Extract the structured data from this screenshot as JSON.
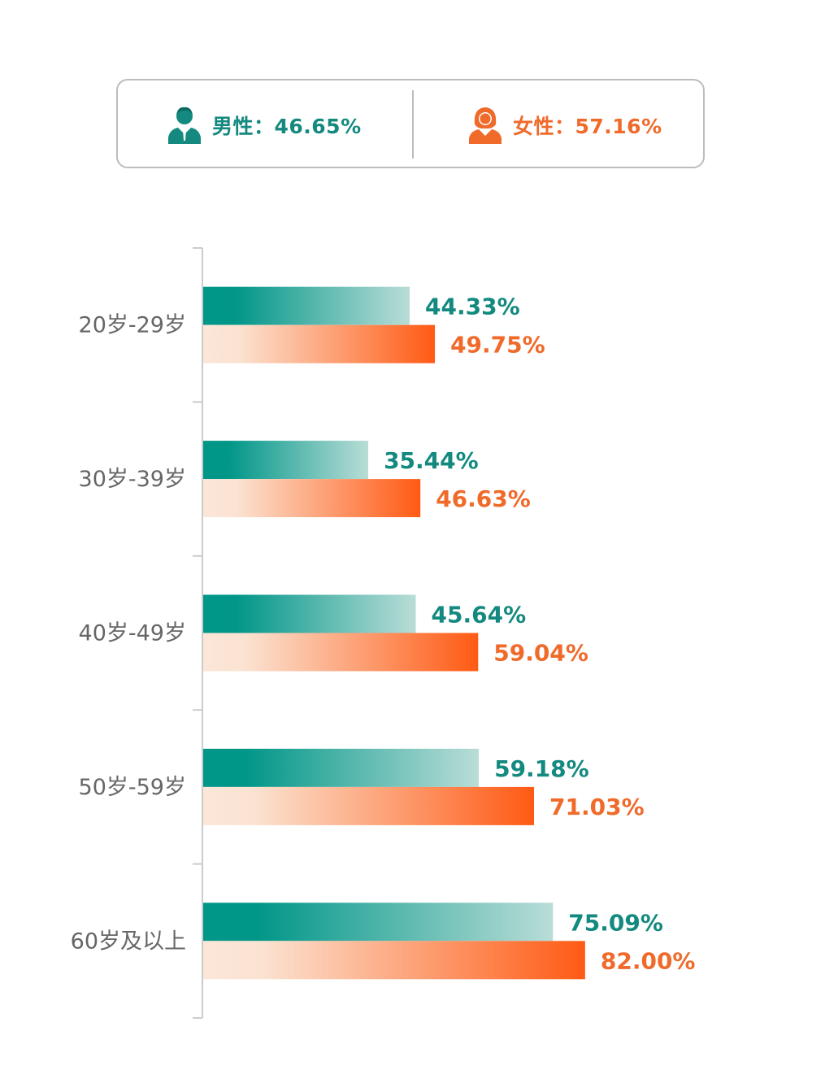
{
  "legend": {
    "male": {
      "icon": "male-user-icon",
      "label": "男性：46.65%",
      "color": "#13897f"
    },
    "female": {
      "icon": "female-user-icon",
      "label": "女性：57.16%",
      "color": "#f06a2a"
    }
  },
  "chart_data": {
    "type": "bar",
    "orientation": "horizontal",
    "categories": [
      "20岁-29岁",
      "30岁-39岁",
      "40岁-49岁",
      "50岁-59岁",
      "60岁及以上"
    ],
    "series": [
      {
        "name": "男性",
        "values": [
          44.33,
          35.44,
          45.64,
          59.18,
          75.09
        ],
        "labels": [
          "44.33%",
          "35.44%",
          "45.64%",
          "59.18%",
          "75.09%"
        ],
        "color": "#009688"
      },
      {
        "name": "女性",
        "values": [
          49.75,
          46.63,
          59.04,
          71.03,
          82.0
        ],
        "labels": [
          "49.75%",
          "46.63%",
          "59.04%",
          "71.03%",
          "82.00%"
        ],
        "color": "#ff5a14"
      }
    ],
    "xlim": [
      0,
      100
    ],
    "grid": false,
    "legend_position": "top"
  }
}
